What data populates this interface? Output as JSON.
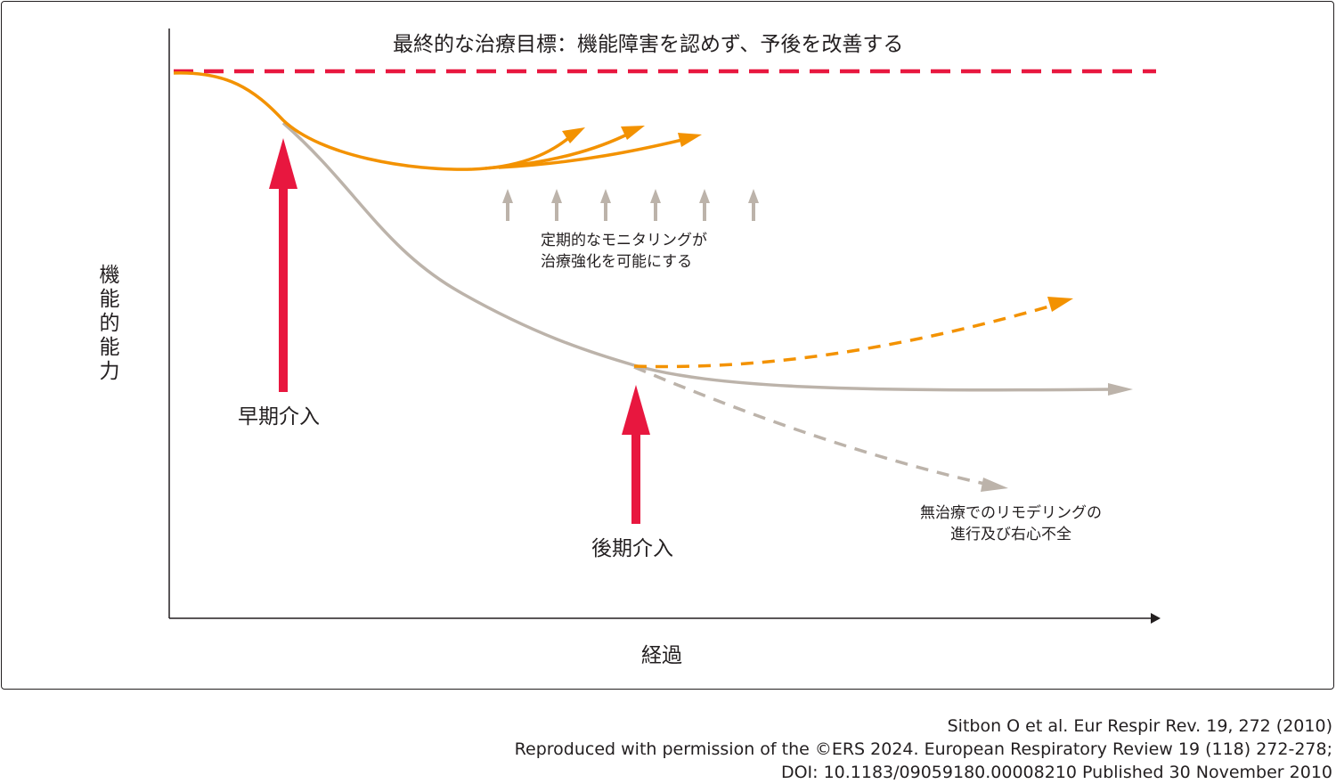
{
  "title": "最終的な治療目標：機能障害を認めず、予後を改善する",
  "y_axis_label": [
    "機",
    "能",
    "的",
    "能",
    "力"
  ],
  "x_axis_label": "経過",
  "labels": {
    "early_intervention": "早期介入",
    "late_intervention": "後期介入",
    "monitoring_line1": "定期的なモニタリングが",
    "monitoring_line2": "治療強化を可能にする",
    "untreated_line1": "無治療でのリモデリングの",
    "untreated_line2": "進行及び右心不全"
  },
  "citation": {
    "line1": "Sitbon O et al. Eur Respir Rev. 19, 272 (2010)",
    "line2": "Reproduced with permission of the ©ERS 2024. European Respiratory Review 19 (118) 272-278;",
    "line3": "DOI: 10.1183/09059180.00008210 Published 30 November 2010"
  },
  "colors": {
    "goal_line": "#e8173f",
    "intervention_arrow": "#e8173f",
    "treated_curve": "#f39200",
    "untreated_curve": "#bcb3aa",
    "axis": "#231f20"
  }
}
